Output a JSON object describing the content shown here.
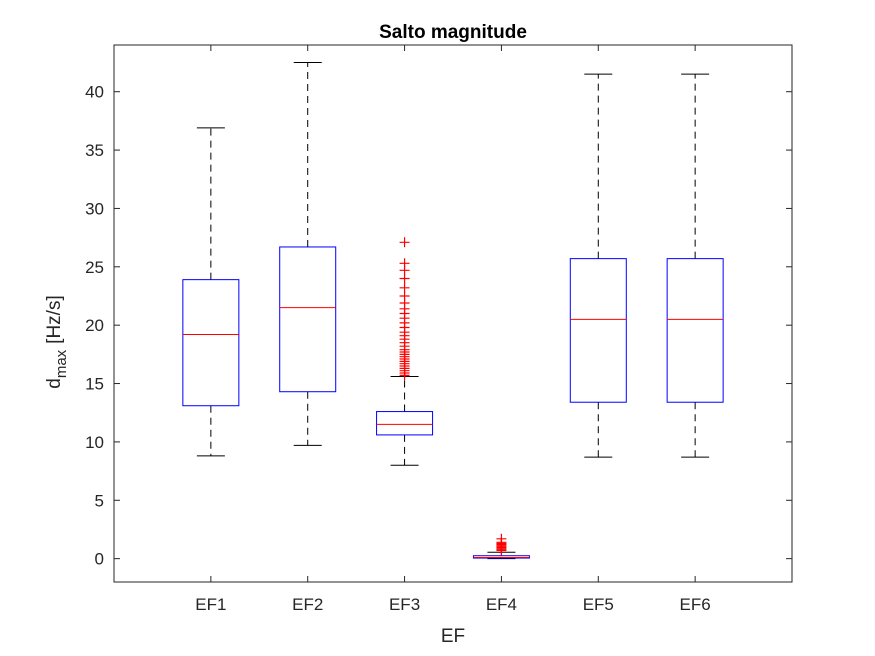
{
  "chart_data": {
    "type": "box",
    "title": "Salto magnitude",
    "xlabel": "EF",
    "ylabel_main": "d",
    "ylabel_subscript": "max",
    "ylabel_unit": "[Hz/s]",
    "ylim": [
      -2,
      44
    ],
    "yticks": [
      0,
      5,
      10,
      15,
      20,
      25,
      30,
      35,
      40
    ],
    "grid": false,
    "colors": {
      "box": "#0000ff",
      "median": "#ff0000",
      "whisker": "#000000",
      "outlier": "#ff0000",
      "axis": "#262626"
    },
    "categories": [
      "EF1",
      "EF2",
      "EF3",
      "EF4",
      "EF5",
      "EF6"
    ],
    "boxes": [
      {
        "category": "EF1",
        "whisker_low": 8.8,
        "q1": 13.1,
        "median": 19.2,
        "q3": 23.9,
        "whisker_high": 36.9,
        "outliers": []
      },
      {
        "category": "EF2",
        "whisker_low": 9.7,
        "q1": 14.3,
        "median": 21.5,
        "q3": 26.7,
        "whisker_high": 42.5,
        "outliers": []
      },
      {
        "category": "EF3",
        "whisker_low": 8.0,
        "q1": 10.6,
        "median": 11.5,
        "q3": 12.6,
        "whisker_high": 15.6,
        "outliers": [
          15.7,
          15.9,
          16.1,
          16.3,
          16.5,
          16.7,
          16.9,
          17.1,
          17.3,
          17.5,
          17.7,
          17.9,
          18.2,
          18.5,
          18.8,
          19.1,
          19.4,
          19.8,
          20.2,
          20.6,
          21.0,
          21.4,
          21.9,
          22.5,
          23.2,
          24.0,
          24.7,
          25.3,
          27.1
        ]
      },
      {
        "category": "EF4",
        "whisker_low": 0.0,
        "q1": 0.05,
        "median": 0.1,
        "q3": 0.25,
        "whisker_high": 0.55,
        "outliers": [
          0.7,
          0.8,
          0.9,
          1.0,
          1.1,
          1.2,
          1.3,
          1.4,
          1.7
        ]
      },
      {
        "category": "EF5",
        "whisker_low": 8.7,
        "q1": 13.4,
        "median": 20.5,
        "q3": 25.7,
        "whisker_high": 41.5,
        "outliers": []
      },
      {
        "category": "EF6",
        "whisker_low": 8.7,
        "q1": 13.4,
        "median": 20.5,
        "q3": 25.7,
        "whisker_high": 41.5,
        "outliers": []
      }
    ]
  }
}
